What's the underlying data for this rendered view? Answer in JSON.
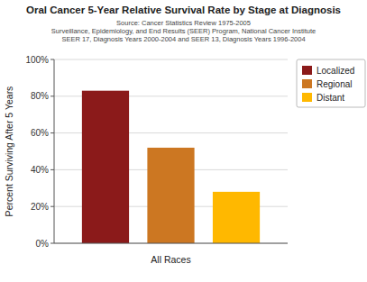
{
  "chart_data": {
    "type": "bar",
    "title": "Oral Cancer 5-Year Relative Survival Rate by Stage at Diagnosis",
    "subtitle": [
      "Source: Cancer Statistics Review 1975-2005",
      "Surveillance, Epidemiology, and End Results (SEER) Program, National Cancer Institute",
      "SEER 17, Diagnosis Years 2000-2004 and SEER 13, Diagnosis Years 1996-2004"
    ],
    "xlabel": "All Races",
    "ylabel": "Percent Surviving After 5 Years",
    "categories": [
      null
    ],
    "series": [
      {
        "name": "Localized",
        "color": "#8B1A1A",
        "values": [
          83
        ]
      },
      {
        "name": "Regional",
        "color": "#CC7722",
        "values": [
          52
        ]
      },
      {
        "name": "Distant",
        "color": "#FFB800",
        "values": [
          28
        ]
      }
    ],
    "ylim": [
      0,
      100
    ],
    "yticks": [
      {
        "value": 0,
        "label": "0%"
      },
      {
        "value": 20,
        "label": "20%"
      },
      {
        "value": 40,
        "label": "40%"
      },
      {
        "value": 60,
        "label": "60%"
      },
      {
        "value": 80,
        "label": "80%"
      },
      {
        "value": 100,
        "label": "100%"
      }
    ],
    "grid": true,
    "legend": "upper right"
  }
}
